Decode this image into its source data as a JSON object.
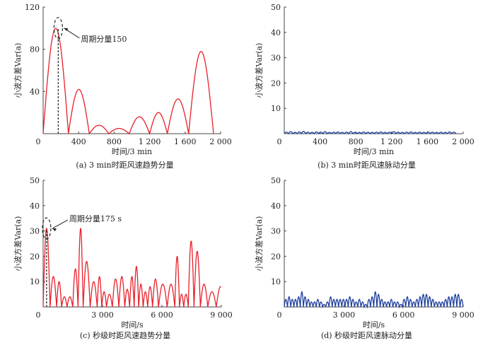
{
  "chart_data": [
    {
      "type": "line",
      "panel": "a",
      "caption": "(a)   3 min时距风速趋势分量",
      "xlabel": "时间/3 min",
      "ylabel": "小波方差Var(a)",
      "xlim": [
        0,
        2000
      ],
      "ylim": [
        0,
        120
      ],
      "xticks": [
        0,
        400,
        800,
        1200,
        1600,
        2000
      ],
      "xtick_labels": [
        "0",
        "400",
        "800",
        "1 200",
        "1 600",
        "2 000"
      ],
      "yticks": [
        40,
        80,
        120
      ],
      "ytick_labels": [
        "40",
        "80",
        "120"
      ],
      "color": "#e8202a",
      "x_end": 1920,
      "peaks": [
        [
          170,
          100
        ],
        [
          400,
          42
        ],
        [
          640,
          8
        ],
        [
          840,
          5
        ],
        [
          1100,
          16
        ],
        [
          1300,
          20
        ],
        [
          1500,
          33
        ],
        [
          1780,
          78
        ]
      ],
      "annotation": {
        "text": "周期分量150",
        "x": 170,
        "y": 100
      }
    },
    {
      "type": "line",
      "panel": "b",
      "caption": "(b)   3 min时距风速脉动分量",
      "xlabel": "时间/3 min",
      "ylabel": "小波方差Var(a)",
      "xlim": [
        0,
        2000
      ],
      "ylim": [
        0,
        50
      ],
      "xticks": [
        0,
        400,
        800,
        1200,
        1600,
        2000
      ],
      "xtick_labels": [
        "0",
        "400",
        "800",
        "1 200",
        "1 600",
        "2 000"
      ],
      "yticks": [
        10,
        20,
        30,
        40,
        50
      ],
      "ytick_labels": [
        "10",
        "20",
        "30",
        "40",
        "50"
      ],
      "color": "#1f3f9f",
      "x_end": 1920,
      "lobe_peaks": [
        0.6,
        0.8,
        0.5,
        0.7,
        0.9,
        0.6,
        0.5,
        0.7,
        0.6,
        0.8,
        0.5,
        0.6,
        0.7,
        0.5,
        0.6,
        0.8,
        0.6,
        0.5,
        0.7,
        0.6,
        0.5,
        0.6,
        0.7,
        0.5,
        0.6,
        0.8,
        0.6,
        0.5,
        0.6,
        0.7,
        0.5,
        0.6,
        0.5,
        0.7,
        0.6,
        0.5,
        0.6,
        0.5,
        0.7,
        0.6
      ]
    },
    {
      "type": "line",
      "panel": "c",
      "caption": "(c)   秒级时距风速趋势分量",
      "xlabel": "时间/s",
      "ylabel": "小波方差Var(a)",
      "xlim": [
        0,
        9000
      ],
      "ylim": [
        0,
        50
      ],
      "xticks": [
        0,
        3000,
        6000,
        9000
      ],
      "xtick_labels": [
        "0",
        "3 000",
        "6 000",
        "9 000"
      ],
      "yticks": [
        10,
        20,
        30,
        40,
        50
      ],
      "ytick_labels": [
        "10",
        "20",
        "30",
        "40",
        "50"
      ],
      "color": "#e8202a",
      "x_end": 9000,
      "peaks": [
        [
          140,
          31
        ],
        [
          560,
          12
        ],
        [
          800,
          10
        ],
        [
          1060,
          4
        ],
        [
          1360,
          4
        ],
        [
          1630,
          15
        ],
        [
          1900,
          31
        ],
        [
          2140,
          18
        ],
        [
          2610,
          10
        ],
        [
          2850,
          12
        ],
        [
          3070,
          6
        ],
        [
          3330,
          5
        ],
        [
          3660,
          11
        ],
        [
          3990,
          12
        ],
        [
          4260,
          7
        ],
        [
          4480,
          12
        ],
        [
          4710,
          16
        ],
        [
          4940,
          9
        ],
        [
          5160,
          6
        ],
        [
          5400,
          8
        ],
        [
          5650,
          11
        ],
        [
          6000,
          9
        ],
        [
          6530,
          9
        ],
        [
          6770,
          20
        ],
        [
          7000,
          5
        ],
        [
          7200,
          5
        ],
        [
          7460,
          26
        ],
        [
          7780,
          22
        ],
        [
          8100,
          9
        ],
        [
          8530,
          6
        ],
        [
          8960,
          8
        ]
      ],
      "annotation": {
        "text": "周期分量175 s",
        "x": 175,
        "y": 31
      }
    },
    {
      "type": "line",
      "panel": "d",
      "caption": "(d)   秒级时距风速脉动分量",
      "xlabel": "时间/s",
      "ylabel": "小波方差Var(a)",
      "xlim": [
        0,
        9000
      ],
      "ylim": [
        0,
        50
      ],
      "xticks": [
        0,
        3000,
        6000,
        9000
      ],
      "xtick_labels": [
        "0",
        "3 000",
        "6 000",
        "9 000"
      ],
      "yticks": [
        10,
        20,
        30,
        40,
        50
      ],
      "ytick_labels": [
        "10",
        "20",
        "30",
        "40",
        "50"
      ],
      "color": "#1f3f9f",
      "x_end": 9000,
      "lobe_peaks": [
        3,
        4,
        3,
        3,
        4,
        6,
        4,
        3,
        2,
        2,
        3,
        2,
        1,
        2,
        4,
        3,
        3,
        3,
        3,
        3,
        4,
        3,
        2,
        3,
        2,
        1,
        3,
        4,
        6,
        5,
        3,
        2,
        2,
        3,
        2,
        2,
        1,
        3,
        4,
        3,
        2,
        3,
        4,
        5,
        5,
        4,
        3,
        2,
        2,
        2,
        3,
        4,
        4,
        5,
        5,
        3
      ]
    }
  ]
}
